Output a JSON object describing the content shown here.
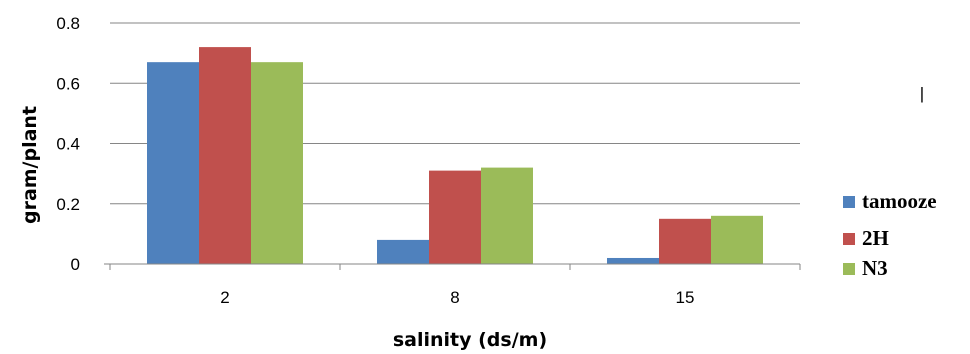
{
  "chart_data": {
    "type": "bar",
    "xlabel": "salinity (ds/m)",
    "ylabel": "gram/plant",
    "categories": [
      "2",
      "8",
      "15"
    ],
    "series": [
      {
        "name": "tamooze",
        "color": "#4F81BD",
        "values": [
          0.67,
          0.08,
          0.02
        ]
      },
      {
        "name": "2H",
        "color": "#C0504D",
        "values": [
          0.72,
          0.31,
          0.15
        ]
      },
      {
        "name": "N3",
        "color": "#9BBB59",
        "values": [
          0.67,
          0.32,
          0.16
        ]
      }
    ],
    "ylim": [
      0,
      0.8
    ],
    "yticks": [
      "0",
      "0.2",
      "0.4",
      "0.6",
      "0.8"
    ],
    "grid": true,
    "legend": "right",
    "annotation": "|"
  }
}
